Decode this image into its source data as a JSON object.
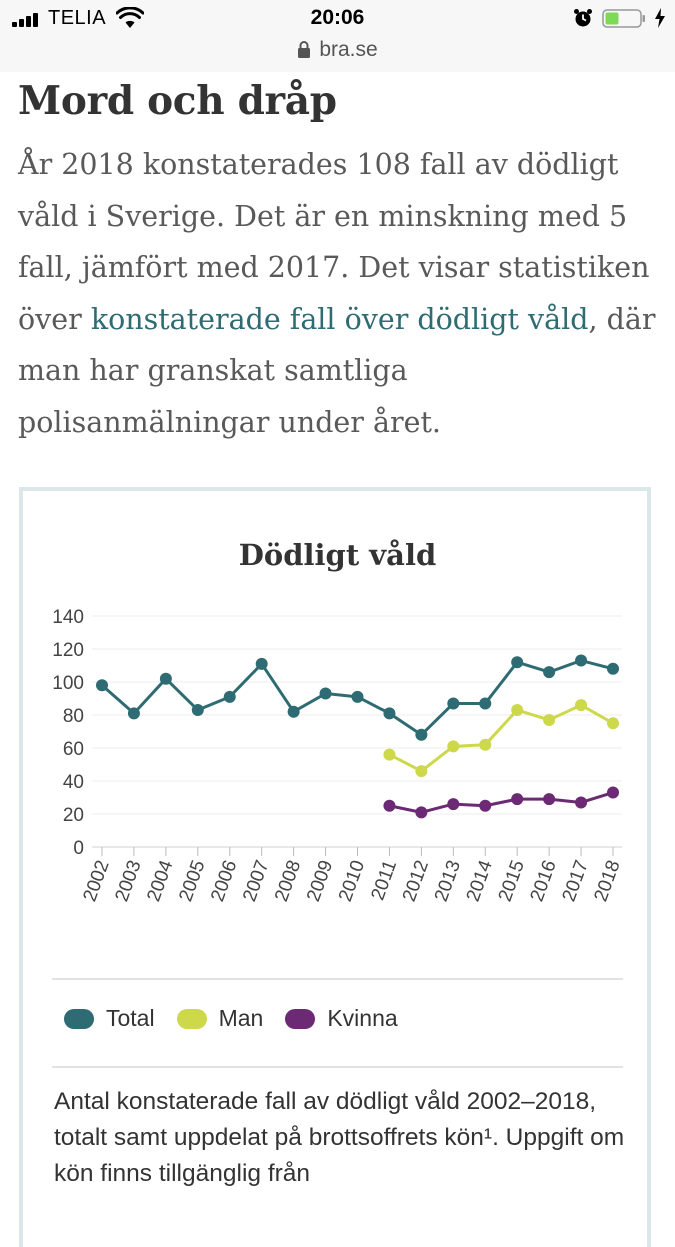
{
  "status_bar": {
    "carrier": "TELIA",
    "time": "20:06",
    "url": "bra.se",
    "battery_color": "#7ed957"
  },
  "article": {
    "heading": "Mord och dråp",
    "intro_before": "År 2018 konstaterades 108 fall av dödligt våld i Sverige. Det är en minskning med 5 fall, jämfört med 2017. Det visar statistiken över ",
    "intro_link": "konstaterade fall över dödligt våld",
    "intro_after": ", där man har granskat samtliga polisanmälningar under året."
  },
  "chart": {
    "caption": "Antal konstaterade fall av dödligt våld 2002–2018, totalt samt uppdelat på brottsoffrets kön¹. Uppgift om kön finns tillgänglig från"
  },
  "chart_data": {
    "type": "line",
    "title": "Dödligt våld",
    "xlabel": "",
    "ylabel": "",
    "ylim": [
      0,
      140
    ],
    "yticks": [
      0,
      20,
      40,
      60,
      80,
      100,
      120,
      140
    ],
    "grid": true,
    "legend_position": "bottom",
    "x": [
      "2002",
      "2003",
      "2004",
      "2005",
      "2006",
      "2007",
      "2008",
      "2009",
      "2010",
      "2011",
      "2012",
      "2013",
      "2014",
      "2015",
      "2016",
      "2017",
      "2018"
    ],
    "series": [
      {
        "name": "Total",
        "color": "#2e6b72",
        "values": [
          98,
          81,
          102,
          83,
          91,
          111,
          82,
          93,
          91,
          81,
          68,
          87,
          87,
          112,
          106,
          113,
          108
        ]
      },
      {
        "name": "Man",
        "color": "#cdd84a",
        "values": [
          null,
          null,
          null,
          null,
          null,
          null,
          null,
          null,
          null,
          56,
          46,
          61,
          62,
          83,
          77,
          86,
          75
        ]
      },
      {
        "name": "Kvinna",
        "color": "#6b2a73",
        "values": [
          null,
          null,
          null,
          null,
          null,
          null,
          null,
          null,
          null,
          25,
          21,
          26,
          25,
          29,
          29,
          27,
          33
        ]
      }
    ]
  }
}
